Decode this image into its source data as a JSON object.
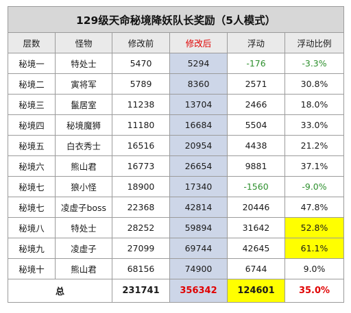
{
  "title": "129级天命秘境降妖队长奖励（5人模式）",
  "headers": [
    "层数",
    "怪物",
    "修改前",
    "修改后",
    "浮动",
    "浮动比例"
  ],
  "rows": [
    {
      "layer": "秘境一",
      "monster": "特处士",
      "before": "5470",
      "after": "5294",
      "change": "-176",
      "ratio": "-3.3%",
      "negative": true,
      "highlight": false
    },
    {
      "layer": "秘境二",
      "monster": "寅将军",
      "before": "5789",
      "after": "8360",
      "change": "2571",
      "ratio": "30.8%",
      "negative": false,
      "highlight": false
    },
    {
      "layer": "秘境三",
      "monster": "鬣居室",
      "before": "11238",
      "after": "13704",
      "change": "2466",
      "ratio": "18.0%",
      "negative": false,
      "highlight": false
    },
    {
      "layer": "秘境四",
      "monster": "秘境魔狮",
      "before": "11180",
      "after": "16684",
      "change": "5504",
      "ratio": "33.0%",
      "negative": false,
      "highlight": false
    },
    {
      "layer": "秘境五",
      "monster": "白衣秀士",
      "before": "16516",
      "after": "20954",
      "change": "4438",
      "ratio": "21.2%",
      "negative": false,
      "highlight": false
    },
    {
      "layer": "秘境六",
      "monster": "熊山君",
      "before": "16773",
      "after": "26654",
      "change": "9881",
      "ratio": "37.1%",
      "negative": false,
      "highlight": false
    },
    {
      "layer": "秘境七",
      "monster": "狼小怪",
      "before": "18900",
      "after": "17340",
      "change": "-1560",
      "ratio": "-9.0%",
      "negative": true,
      "highlight": false
    },
    {
      "layer": "秘境七",
      "monster": "凌虚子boss",
      "before": "22368",
      "after": "42814",
      "change": "20446",
      "ratio": "47.8%",
      "negative": false,
      "highlight": false
    },
    {
      "layer": "秘境八",
      "monster": "特处士",
      "before": "28252",
      "after": "59894",
      "change": "31642",
      "ratio": "52.8%",
      "negative": false,
      "highlight": true
    },
    {
      "layer": "秘境九",
      "monster": "凌虚子",
      "before": "27099",
      "after": "69744",
      "change": "42645",
      "ratio": "61.1%",
      "negative": false,
      "highlight": true
    },
    {
      "layer": "秘境十",
      "monster": "熊山君",
      "before": "68156",
      "after": "74900",
      "change": "6744",
      "ratio": "9.0%",
      "negative": false,
      "highlight": false
    }
  ],
  "total": {
    "label": "总",
    "before": "231741",
    "after": "356342",
    "change": "124601",
    "ratio": "35.0%"
  }
}
